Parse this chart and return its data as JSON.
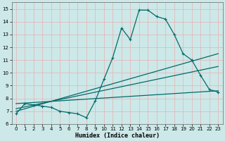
{
  "xlabel": "Humidex (Indice chaleur)",
  "bg_color": "#cde8e8",
  "grid_color": "#b0d4d4",
  "line_color": "#006b6b",
  "xlim": [
    -0.5,
    23.5
  ],
  "ylim": [
    6,
    15.5
  ],
  "yticks": [
    6,
    7,
    8,
    9,
    10,
    11,
    12,
    13,
    14,
    15
  ],
  "xticks": [
    0,
    1,
    2,
    3,
    4,
    5,
    6,
    7,
    8,
    9,
    10,
    11,
    12,
    13,
    14,
    15,
    16,
    17,
    18,
    19,
    20,
    21,
    22,
    23
  ],
  "main_series": [
    6.8,
    7.6,
    7.5,
    7.4,
    7.3,
    7.0,
    6.9,
    6.8,
    6.5,
    7.8,
    9.5,
    11.2,
    13.5,
    12.6,
    14.9,
    14.9,
    14.4,
    14.2,
    13.0,
    11.5,
    11.0,
    9.8,
    8.7,
    8.5
  ],
  "trend1_x": [
    0,
    23
  ],
  "trend1_y": [
    7.0,
    11.5
  ],
  "trend2_x": [
    0,
    23
  ],
  "trend2_y": [
    7.2,
    10.5
  ],
  "trend3_x": [
    0,
    23
  ],
  "trend3_y": [
    7.6,
    8.6
  ]
}
